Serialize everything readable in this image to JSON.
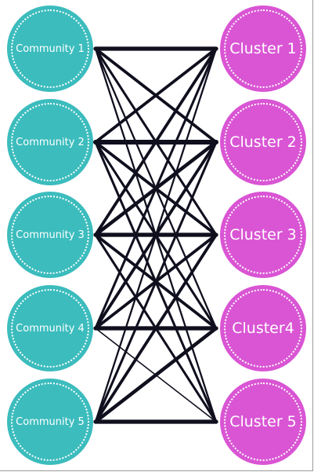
{
  "colors": {
    "community": "#3cbcbd",
    "cluster": "#d955d4",
    "edge": "#0f0f1e",
    "text": "#ffffff"
  },
  "communities": [
    {
      "label": "Community 1"
    },
    {
      "label": "Community 2"
    },
    {
      "label": "Community 3"
    },
    {
      "label": "Community 4"
    },
    {
      "label": "Community 5"
    }
  ],
  "clusters": [
    {
      "label": "Cluster 1"
    },
    {
      "label": "Cluster 2"
    },
    {
      "label": "Cluster 3"
    },
    {
      "label": "Cluster4"
    },
    {
      "label": "Cluster 5"
    }
  ],
  "edges": [
    {
      "from": 1,
      "to": 1,
      "weight": 6
    },
    {
      "from": 1,
      "to": 2,
      "weight": 4
    },
    {
      "from": 1,
      "to": 3,
      "weight": 3
    },
    {
      "from": 1,
      "to": 4,
      "weight": 2
    },
    {
      "from": 1,
      "to": 5,
      "weight": 2
    },
    {
      "from": 2,
      "to": 1,
      "weight": 4
    },
    {
      "from": 2,
      "to": 2,
      "weight": 7
    },
    {
      "from": 2,
      "to": 3,
      "weight": 4
    },
    {
      "from": 2,
      "to": 4,
      "weight": 3
    },
    {
      "from": 2,
      "to": 5,
      "weight": 3
    },
    {
      "from": 3,
      "to": 1,
      "weight": 4
    },
    {
      "from": 3,
      "to": 2,
      "weight": 5
    },
    {
      "from": 3,
      "to": 3,
      "weight": 6
    },
    {
      "from": 3,
      "to": 4,
      "weight": 4
    },
    {
      "from": 3,
      "to": 5,
      "weight": 3
    },
    {
      "from": 4,
      "to": 1,
      "weight": 3
    },
    {
      "from": 4,
      "to": 2,
      "weight": 4
    },
    {
      "from": 4,
      "to": 3,
      "weight": 4
    },
    {
      "from": 4,
      "to": 4,
      "weight": 6
    },
    {
      "from": 4,
      "to": 5,
      "weight": 1
    },
    {
      "from": 5,
      "to": 1,
      "weight": 2
    },
    {
      "from": 5,
      "to": 2,
      "weight": 3
    },
    {
      "from": 5,
      "to": 3,
      "weight": 4
    },
    {
      "from": 5,
      "to": 4,
      "weight": 5
    },
    {
      "from": 5,
      "to": 5,
      "weight": 6
    }
  ]
}
